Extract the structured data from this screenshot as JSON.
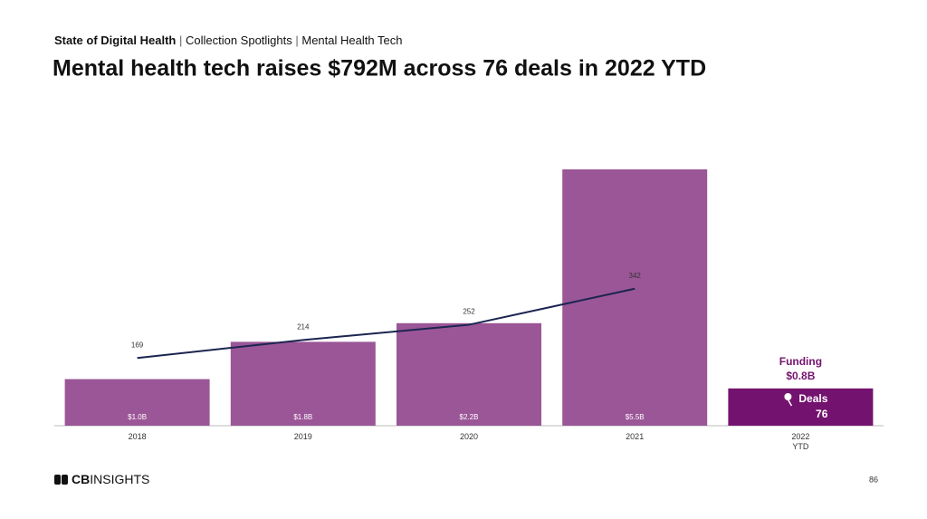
{
  "header": {
    "section": "State of Digital Health",
    "collection": "Collection Spotlights",
    "topic": "Mental Health Tech"
  },
  "chart_data": {
    "type": "bar",
    "title": "Mental health tech raises $792M across 76 deals in 2022 YTD",
    "categories": [
      "2018",
      "2019",
      "2020",
      "2021",
      "2022 YTD"
    ],
    "series": [
      {
        "name": "Funding",
        "type": "bar",
        "color": "#9b5697",
        "highlight_color": "#74136f",
        "values": [
          1.0,
          1.8,
          2.2,
          5.5,
          0.8
        ],
        "value_labels": [
          "$1.0B",
          "$1.8B",
          "$2.2B",
          "$5.5B",
          "$0.8B"
        ]
      },
      {
        "name": "Deals",
        "type": "line",
        "axis": "y2",
        "color": "#1b2550",
        "values": [
          169,
          214,
          252,
          342,
          null
        ]
      }
    ],
    "ylim": [
      0,
      5.5
    ],
    "y2lim": [
      0,
      640
    ],
    "callout": {
      "deals_value": 76
    }
  },
  "footer": {
    "logo_bold": "CB",
    "logo_rest": "INSIGHTS",
    "page": "86"
  }
}
